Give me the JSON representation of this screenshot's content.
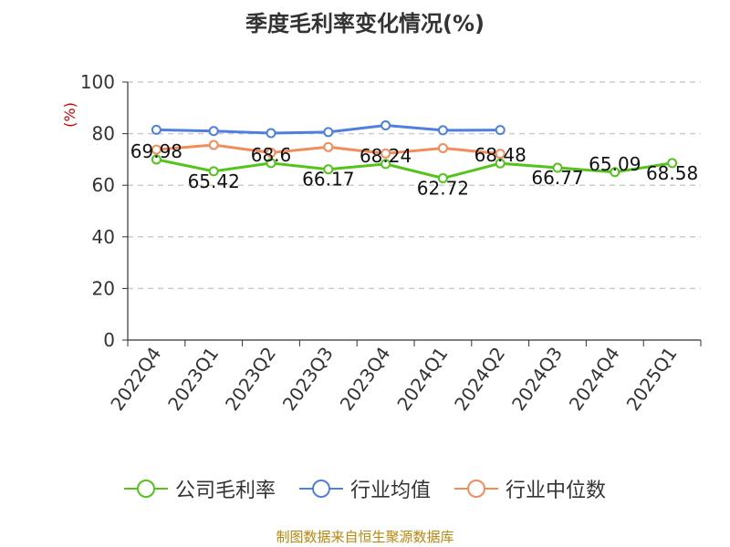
{
  "title": "季度毛利率变化情况(%)",
  "source": "制图数据来自恒生聚源数据库",
  "colors": {
    "company": "#52c41a",
    "industry_avg": "#4f7fdf",
    "industry_median": "#f28c5a",
    "grid": "#cccccc",
    "axis": "#333333",
    "unit": "#cc0000"
  },
  "chart_data": {
    "type": "line",
    "title": "季度毛利率变化情况(%)",
    "ylabel": "(%)",
    "xlabel": "",
    "ylim": [
      0,
      100
    ],
    "yticks": [
      0,
      20,
      40,
      60,
      80,
      100
    ],
    "grid": true,
    "legend_position": "bottom",
    "categories": [
      "2022Q4",
      "2023Q1",
      "2023Q2",
      "2023Q3",
      "2023Q4",
      "2024Q1",
      "2024Q2",
      "2024Q3",
      "2024Q4",
      "2025Q1"
    ],
    "series": [
      {
        "name": "公司毛利率",
        "color": "#52c41a",
        "values": [
          69.98,
          65.42,
          68.6,
          66.17,
          68.24,
          62.72,
          68.48,
          66.77,
          65.09,
          68.58
        ],
        "labels": [
          "69.98",
          "65.42",
          "68.6",
          "66.17",
          "68.24",
          "62.72",
          "68.48",
          "66.77",
          "65.09",
          "68.58"
        ]
      },
      {
        "name": "行业均值",
        "color": "#4f7fdf",
        "values": [
          81.5,
          81.0,
          80.2,
          80.6,
          83.2,
          81.3,
          81.4,
          null,
          null,
          null
        ]
      },
      {
        "name": "行业中位数",
        "color": "#f28c5a",
        "values": [
          73.8,
          75.6,
          72.6,
          74.8,
          72.3,
          74.4,
          72.2,
          null,
          null,
          null
        ]
      }
    ]
  }
}
